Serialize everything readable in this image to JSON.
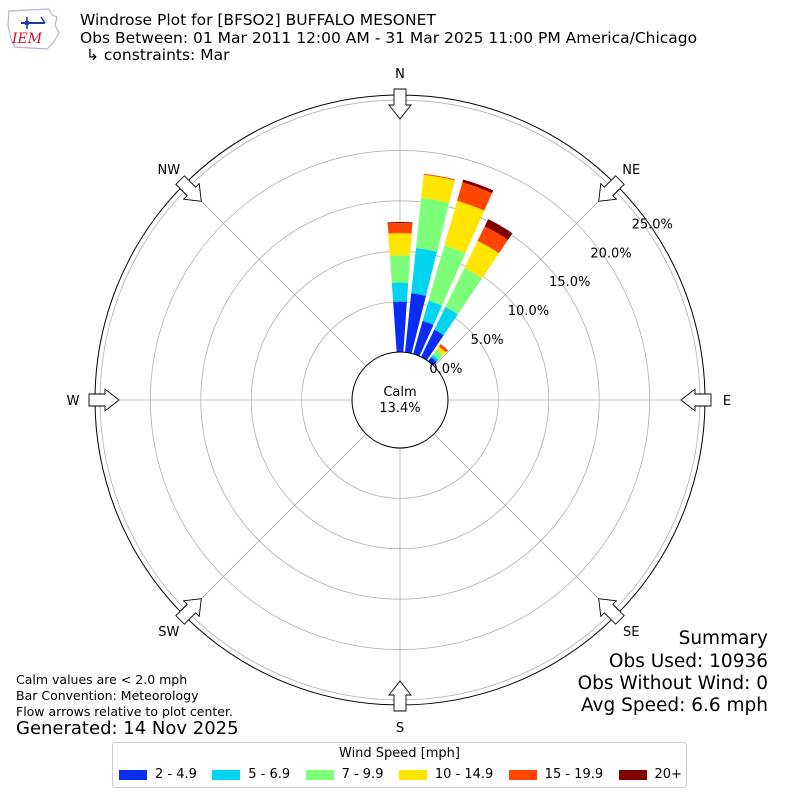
{
  "header": {
    "logo_text": "IEM",
    "title": "Windrose Plot for [BFSO2] BUFFALO MESONET",
    "subtitle": "Obs Between: 01 Mar 2011 12:00 AM - 31 Mar 2025 11:00 PM America/Chicago",
    "constraints": "↳ constraints: Mar"
  },
  "notes": {
    "calm_note": "Calm values are < 2.0 mph",
    "bar_convention": "Bar Convention: Meteorology",
    "flow_arrows": "Flow arrows relative to plot center.",
    "generated": "Generated: 14 Nov 2025"
  },
  "summary": {
    "heading": "Summary",
    "obs_used": "Obs Used: 10936",
    "obs_without_wind": "Obs Without Wind: 0",
    "avg_speed": "Avg Speed: 6.6 mph"
  },
  "legend": {
    "title": "Wind Speed [mph]",
    "items": [
      {
        "label": "2 - 4.9",
        "color": "#0a2cf5"
      },
      {
        "label": "5 - 6.9",
        "color": "#00d4f0"
      },
      {
        "label": "7 - 9.9",
        "color": "#7dff7a"
      },
      {
        "label": "10 - 14.9",
        "color": "#ffe500"
      },
      {
        "label": "15 - 19.9",
        "color": "#ff4500"
      },
      {
        "label": "20+",
        "color": "#800000"
      }
    ]
  },
  "chart_data": {
    "type": "windrose",
    "calm_label": "Calm",
    "calm_value": "13.4%",
    "calm_percent": 13.4,
    "radial_ticks": [
      0,
      5,
      10,
      15,
      20,
      25
    ],
    "radial_tick_labels": [
      "0.0%",
      "5.0%",
      "10.0%",
      "15.0%",
      "20.0%",
      "25.0%"
    ],
    "rmax": 25.5,
    "compass_labels": [
      {
        "label": "N",
        "angle": 0
      },
      {
        "label": "NE",
        "angle": 45
      },
      {
        "label": "E",
        "angle": 90
      },
      {
        "label": "SE",
        "angle": 135
      },
      {
        "label": "S",
        "angle": 180
      },
      {
        "label": "SW",
        "angle": 225
      },
      {
        "label": "W",
        "angle": 270
      },
      {
        "label": "NW",
        "angle": 315
      }
    ],
    "bin_labels": [
      "2 - 4.9",
      "5 - 6.9",
      "7 - 9.9",
      "10 - 14.9",
      "15 - 19.9",
      "20+"
    ],
    "bin_colors": [
      "#0a2cf5",
      "#00d4f0",
      "#7dff7a",
      "#ffe500",
      "#ff4500",
      "#800000"
    ],
    "bar_width_deg": 8,
    "sectors": [
      {
        "angle": 0,
        "values": [
          5.0,
          1.9,
          2.7,
          2.2,
          1.0,
          0.1
        ]
      },
      {
        "angle": 10,
        "values": [
          5.9,
          4.5,
          5.0,
          2.3,
          0.1,
          0.0
        ]
      },
      {
        "angle": 20,
        "values": [
          3.4,
          2.1,
          5.7,
          4.6,
          1.9,
          0.3
        ]
      },
      {
        "angle": 30,
        "values": [
          3.0,
          2.5,
          4.3,
          3.0,
          1.6,
          0.8
        ]
      },
      {
        "angle": 40,
        "values": [
          0.5,
          0.3,
          0.6,
          0.4,
          0.3,
          0.0
        ]
      },
      {
        "angle": 180,
        "values": [
          0.0,
          0.0,
          0.1,
          0.0,
          0.0,
          0.0
        ]
      }
    ]
  }
}
